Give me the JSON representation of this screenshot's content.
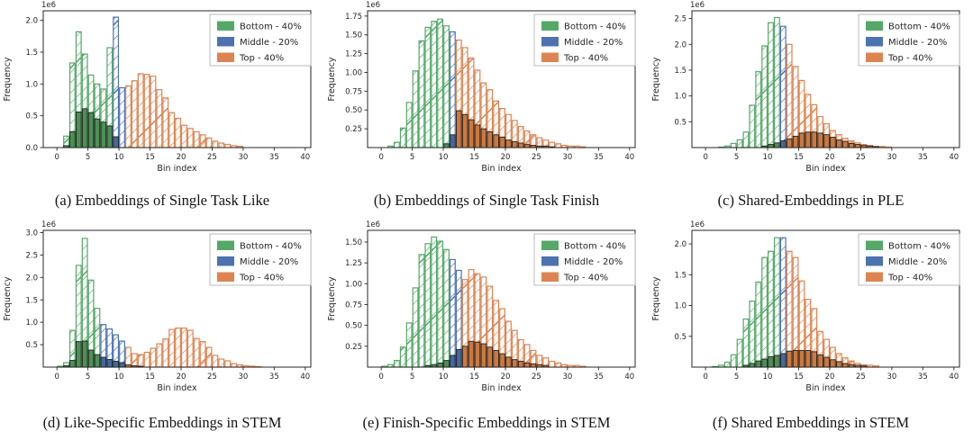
{
  "legend": {
    "items": [
      {
        "label": "Bottom - 40%",
        "color": "#55a868"
      },
      {
        "label": "Middle - 20%",
        "color": "#4c72b0"
      },
      {
        "label": "Top - 40%",
        "color": "#dd8452"
      }
    ]
  },
  "palette": {
    "bottom": "#55a868",
    "middle": "#4c72b0",
    "top": "#dd8452",
    "bottom_solid": "#4e8f55",
    "middle_solid": "#44689e",
    "top_solid": "#c97941",
    "axis": "#262626"
  },
  "chart_data": [
    {
      "type": "histogram",
      "caption": "(a) Embeddings of Single Task Like",
      "xlabel": "Bin index",
      "ylabel": "Frequency",
      "offset": "1e6",
      "xlim": [
        -2.2,
        40.9
      ],
      "ymax": 2.15,
      "xticks": [
        0,
        5,
        10,
        15,
        20,
        25,
        30,
        35,
        40
      ],
      "yticks": [
        0.0,
        0.5,
        1.0,
        1.5,
        2.0
      ],
      "ytick_labels": [
        "0.0",
        "0.5",
        "1.0",
        "1.5",
        "2.0"
      ],
      "series": [
        {
          "name": "Bottom - 40%",
          "key": "bottom",
          "start": 1,
          "values": [
            0.18,
            1.33,
            1.82,
            1.47,
            1.14,
            1.0,
            0.92,
            1.57
          ]
        },
        {
          "name": "Middle - 20%",
          "key": "middle",
          "start": 9,
          "values": [
            2.05,
            0.94
          ]
        },
        {
          "name": "Top - 40%",
          "key": "top",
          "start": 11,
          "values": [
            0.97,
            1.05,
            1.16,
            1.15,
            1.12,
            0.91,
            0.78,
            0.55,
            0.46,
            0.35,
            0.3,
            0.25,
            0.2,
            0.15,
            0.1,
            0.07,
            0.05,
            0.03,
            0.02
          ]
        }
      ],
      "solid": {
        "start": 1,
        "values": [
          0.03,
          0.25,
          0.56,
          0.61,
          0.55,
          0.45,
          0.4,
          0.34,
          0.17
        ]
      }
    },
    {
      "type": "histogram",
      "caption": "(b) Embeddings of Single Task Finish",
      "xlabel": "Bin index",
      "ylabel": "Frequency",
      "offset": "1e6",
      "xlim": [
        -2.2,
        40.9
      ],
      "ymax": 1.82,
      "xticks": [
        0,
        5,
        10,
        15,
        20,
        25,
        30,
        35,
        40
      ],
      "yticks": [
        0.25,
        0.5,
        0.75,
        1.0,
        1.25,
        1.5,
        1.75
      ],
      "ytick_labels": [
        "0.25",
        "0.50",
        "0.75",
        "1.00",
        "1.25",
        "1.50",
        "1.75"
      ],
      "series": [
        {
          "name": "Bottom - 40%",
          "key": "bottom",
          "start": 1,
          "values": [
            0.02,
            0.07,
            0.26,
            0.6,
            1.02,
            1.42,
            1.6,
            1.68,
            1.71,
            1.62
          ]
        },
        {
          "name": "Middle - 20%",
          "key": "middle",
          "start": 11,
          "values": [
            1.54
          ]
        },
        {
          "name": "Top - 40%",
          "key": "top",
          "start": 12,
          "values": [
            1.43,
            1.33,
            1.19,
            1.03,
            0.86,
            0.77,
            0.62,
            0.52,
            0.44,
            0.36,
            0.28,
            0.22,
            0.17,
            0.13,
            0.1,
            0.07,
            0.05,
            0.03,
            0.02,
            0.02,
            0.01
          ]
        }
      ],
      "solid": {
        "start": 10,
        "values": [
          0.05,
          0.17,
          0.49,
          0.44,
          0.37,
          0.3,
          0.25,
          0.21,
          0.17,
          0.14,
          0.1,
          0.08,
          0.06,
          0.04,
          0.03,
          0.02,
          0.02,
          0.01
        ]
      }
    },
    {
      "type": "histogram",
      "caption": "(c) Shared-Embeddings in PLE",
      "xlabel": "Bin index",
      "ylabel": "Frequency",
      "offset": "1e6",
      "xlim": [
        -2.2,
        40.9
      ],
      "ymax": 2.65,
      "xticks": [
        0,
        5,
        10,
        15,
        20,
        25,
        30,
        35,
        40
      ],
      "yticks": [
        0.5,
        1.0,
        1.5,
        2.0,
        2.5
      ],
      "ytick_labels": [
        "0.5",
        "1.0",
        "1.5",
        "2.0",
        "2.5"
      ],
      "series": [
        {
          "name": "Bottom - 40%",
          "key": "bottom",
          "start": 2,
          "values": [
            0.01,
            0.03,
            0.08,
            0.15,
            0.3,
            0.82,
            1.47,
            1.97,
            2.42,
            2.52
          ]
        },
        {
          "name": "Middle - 20%",
          "key": "middle",
          "start": 12,
          "values": [
            2.35
          ]
        },
        {
          "name": "Top - 40%",
          "key": "top",
          "start": 13,
          "values": [
            2.0,
            1.57,
            1.3,
            1.03,
            0.83,
            0.6,
            0.46,
            0.33,
            0.25,
            0.18,
            0.13,
            0.09,
            0.06,
            0.04,
            0.02,
            0.02,
            0.01
          ]
        }
      ],
      "solid": {
        "start": 9,
        "values": [
          0.03,
          0.06,
          0.09,
          0.13,
          0.17,
          0.22,
          0.28,
          0.3,
          0.3,
          0.28,
          0.25,
          0.2,
          0.15,
          0.12,
          0.08,
          0.06,
          0.04,
          0.03,
          0.02
        ]
      }
    },
    {
      "type": "histogram",
      "caption": "(d) Like-Specific Embeddings in STEM",
      "xlabel": "Bin index",
      "ylabel": "Frequency",
      "offset": "1e6",
      "xlim": [
        -2.2,
        40.9
      ],
      "ymax": 3.05,
      "xticks": [
        0,
        5,
        10,
        15,
        20,
        25,
        30,
        35,
        40
      ],
      "yticks": [
        0.5,
        1.0,
        1.5,
        2.0,
        2.5,
        3.0
      ],
      "ytick_labels": [
        "0.5",
        "1.0",
        "1.5",
        "2.0",
        "2.5",
        "3.0"
      ],
      "series": [
        {
          "name": "Bottom - 40%",
          "key": "bottom",
          "start": 0,
          "values": [
            0.02,
            0.1,
            0.82,
            2.27,
            2.87,
            1.94,
            1.31
          ]
        },
        {
          "name": "Middle - 20%",
          "key": "middle",
          "start": 7,
          "values": [
            0.95,
            0.85,
            0.72,
            0.58
          ]
        },
        {
          "name": "Top - 40%",
          "key": "top",
          "start": 11,
          "values": [
            0.44,
            0.3,
            0.28,
            0.33,
            0.42,
            0.52,
            0.63,
            0.84,
            0.87,
            0.87,
            0.82,
            0.64,
            0.57,
            0.44,
            0.26,
            0.18,
            0.14,
            0.08,
            0.05,
            0.03,
            0.02,
            0.01
          ]
        }
      ],
      "solid": {
        "start": 1,
        "values": [
          0.03,
          0.15,
          0.57,
          0.58,
          0.38,
          0.28,
          0.22,
          0.17,
          0.13,
          0.1,
          0.05,
          0.03,
          0.02
        ]
      }
    },
    {
      "type": "histogram",
      "caption": "(e) Finish-Specific Embeddings in STEM",
      "xlabel": "Bin index",
      "ylabel": "Frequency",
      "offset": "1e6",
      "xlim": [
        -2.2,
        40.9
      ],
      "ymax": 1.64,
      "xticks": [
        0,
        5,
        10,
        15,
        20,
        25,
        30,
        35,
        40
      ],
      "yticks": [
        0.25,
        0.5,
        0.75,
        1.0,
        1.25,
        1.5
      ],
      "ytick_labels": [
        "0.25",
        "0.50",
        "0.75",
        "1.00",
        "1.25",
        "1.50"
      ],
      "series": [
        {
          "name": "Bottom - 40%",
          "key": "bottom",
          "start": 0,
          "values": [
            0.01,
            0.03,
            0.08,
            0.24,
            0.53,
            0.95,
            1.35,
            1.48,
            1.56,
            1.51,
            1.41
          ]
        },
        {
          "name": "Middle - 20%",
          "key": "middle",
          "start": 11,
          "values": [
            1.29,
            1.16
          ]
        },
        {
          "name": "Top - 40%",
          "key": "top",
          "start": 13,
          "values": [
            1.05,
            1.17,
            1.12,
            1.08,
            0.97,
            0.8,
            0.7,
            0.55,
            0.44,
            0.33,
            0.27,
            0.2,
            0.14,
            0.11,
            0.07,
            0.05,
            0.03,
            0.02,
            0.02,
            0.01
          ]
        }
      ],
      "solid": {
        "start": 7,
        "values": [
          0.02,
          0.03,
          0.05,
          0.08,
          0.14,
          0.21,
          0.25,
          0.31,
          0.3,
          0.28,
          0.24,
          0.2,
          0.16,
          0.12,
          0.09,
          0.07,
          0.05,
          0.04,
          0.03,
          0.02
        ]
      }
    },
    {
      "type": "histogram",
      "caption": "(f) Shared Embeddings in STEM",
      "xlabel": "Bin index",
      "ylabel": "Frequency",
      "offset": "1e6",
      "xlim": [
        -2.2,
        40.9
      ],
      "ymax": 2.22,
      "xticks": [
        0,
        5,
        10,
        15,
        20,
        25,
        30,
        35,
        40
      ],
      "yticks": [
        0.5,
        1.0,
        1.5,
        2.0
      ],
      "ytick_labels": [
        "0.5",
        "1.0",
        "1.5",
        "2.0"
      ],
      "series": [
        {
          "name": "Bottom - 40%",
          "key": "bottom",
          "start": 1,
          "values": [
            0.01,
            0.03,
            0.08,
            0.2,
            0.45,
            0.78,
            1.07,
            1.38,
            1.78,
            1.88,
            2.1
          ]
        },
        {
          "name": "Middle - 20%",
          "key": "middle",
          "start": 12,
          "values": [
            2.1
          ]
        },
        {
          "name": "Top - 40%",
          "key": "top",
          "start": 13,
          "values": [
            1.88,
            1.78,
            1.4,
            1.1,
            0.95,
            0.58,
            0.45,
            0.32,
            0.22,
            0.15,
            0.1,
            0.06,
            0.04,
            0.03,
            0.02
          ]
        }
      ],
      "solid": {
        "start": 6,
        "values": [
          0.03,
          0.06,
          0.1,
          0.13,
          0.17,
          0.19,
          0.22,
          0.26,
          0.27,
          0.27,
          0.27,
          0.25,
          0.2,
          0.16,
          0.12,
          0.09,
          0.06,
          0.04,
          0.03,
          0.02
        ]
      }
    }
  ]
}
